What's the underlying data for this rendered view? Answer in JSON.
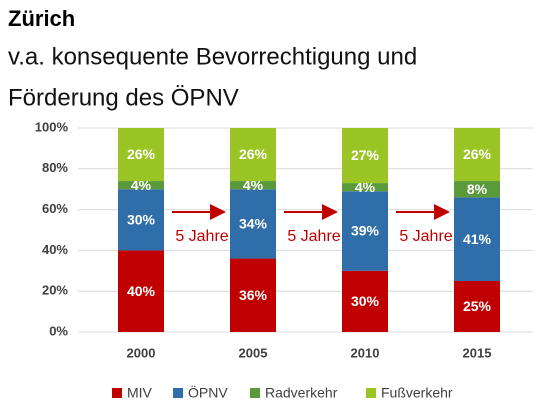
{
  "chart_data": {
    "type": "stacked_bar",
    "title": "Zürich",
    "subtitle": [
      "v.a. konsequente Bevorrechtigung und",
      "Förderung des ÖPNV"
    ],
    "categories": [
      "2000",
      "2005",
      "2010",
      "2015"
    ],
    "series": [
      {
        "name": "MIV",
        "color": "#c00000",
        "values": [
          40,
          36,
          30,
          25
        ],
        "value_labels": [
          "40%",
          "36%",
          "30%",
          "25%"
        ]
      },
      {
        "name": "ÖPNV",
        "color": "#2f6ea8",
        "values": [
          30,
          34,
          39,
          41
        ],
        "value_labels": [
          "30%",
          "34%",
          "39%",
          "41%"
        ]
      },
      {
        "name": "Radverkehr",
        "color": "#5b9a3a",
        "values": [
          4,
          4,
          4,
          8
        ],
        "value_labels": [
          "4%",
          "4%",
          "4%",
          "8%"
        ]
      },
      {
        "name": "Fußverkehr",
        "color": "#9bc425",
        "values": [
          26,
          26,
          27,
          26
        ],
        "value_labels": [
          "26%",
          "26%",
          "27%",
          "26%"
        ]
      }
    ],
    "annotations": [
      "5 Jahre",
      "5 Jahre",
      "5 Jahre"
    ],
    "ylim": [
      0,
      100
    ],
    "yticks": [
      {
        "value": 0,
        "label": "0%"
      },
      {
        "value": 20,
        "label": "20%"
      },
      {
        "value": 40,
        "label": "40%"
      },
      {
        "value": 60,
        "label": "60%"
      },
      {
        "value": 80,
        "label": "80%"
      },
      {
        "value": 100,
        "label": "100%"
      }
    ],
    "grid": true,
    "legend": "bottom"
  }
}
